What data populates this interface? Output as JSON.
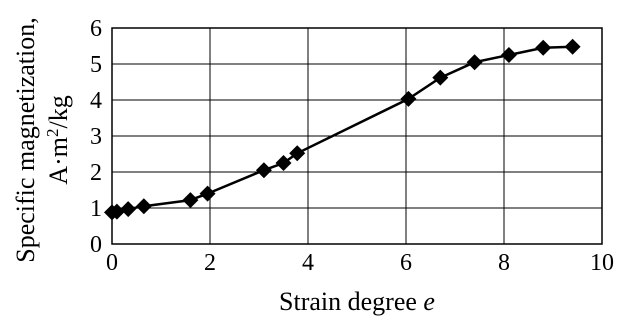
{
  "chart_data": {
    "type": "line",
    "title": "",
    "xlabel_text": "Strain degree ",
    "xlabel_var": "e",
    "ylabel_line1": "Specific magnetization,",
    "ylabel_line2_pre": "A·m",
    "ylabel_line2_sup": "2",
    "ylabel_line2_post": "/kg",
    "xlim": [
      0,
      10
    ],
    "ylim": [
      0,
      6
    ],
    "x_ticks": [
      0,
      2,
      4,
      6,
      8,
      10
    ],
    "y_ticks": [
      0,
      1,
      2,
      3,
      4,
      5,
      6
    ],
    "x_tick_labels": [
      "0",
      "2",
      "4",
      "6",
      "8",
      "10"
    ],
    "y_tick_labels": [
      "0",
      "1",
      "2",
      "3",
      "4",
      "5",
      "6"
    ],
    "grid": true,
    "marker": "diamond",
    "series_color": "#000000",
    "series": [
      {
        "x": [
          0.0,
          0.1,
          0.33,
          0.65,
          1.6,
          1.95,
          3.1,
          3.5,
          3.78,
          6.05,
          6.7,
          7.4,
          8.1,
          8.8,
          9.4
        ],
        "y": [
          0.88,
          0.9,
          0.97,
          1.05,
          1.22,
          1.4,
          2.05,
          2.25,
          2.52,
          4.03,
          4.62,
          5.05,
          5.25,
          5.45,
          5.48
        ]
      }
    ]
  }
}
